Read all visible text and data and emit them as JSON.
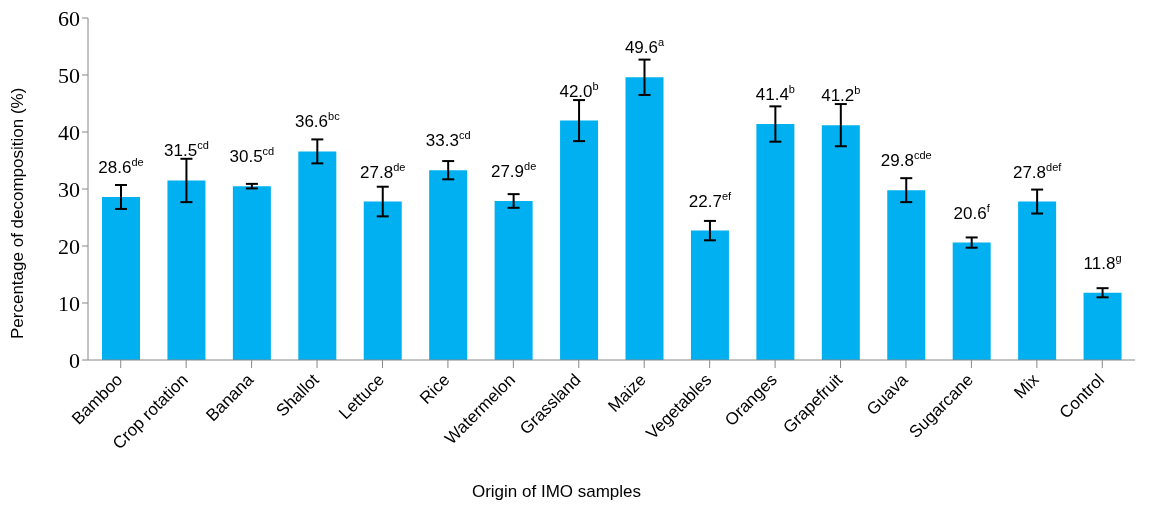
{
  "chart_data": {
    "type": "bar",
    "xlabel": "Origin of IMO samples",
    "ylabel": "Percentage of decomposition (%)",
    "categories": [
      "Bamboo",
      "Crop rotation",
      "Banana",
      "Shallot",
      "Lettuce",
      "Rice",
      "Watermelon",
      "Grassland",
      "Maize",
      "Vegetables",
      "Oranges",
      "Grapefruit",
      "Guava",
      "Sugarcane",
      "Mix",
      "Control"
    ],
    "series": [
      {
        "color": "#00b0f0",
        "values": [
          28.6,
          31.5,
          30.5,
          36.6,
          27.8,
          33.3,
          27.9,
          42.0,
          49.6,
          22.7,
          41.4,
          41.2,
          29.8,
          20.6,
          27.8,
          11.8
        ],
        "errors": [
          2.1,
          3.8,
          0.4,
          2.1,
          2.6,
          1.6,
          1.2,
          3.6,
          3.1,
          1.7,
          3.1,
          3.7,
          2.1,
          0.9,
          2.1,
          0.8
        ],
        "value_labels": [
          "28.6$^{de}$",
          "31.5$^{cd}$",
          "30.5$^{cd}$",
          "36.6$^{bc}$",
          "27.8$^{de}$",
          "33.3$^{cd}$",
          "27.9$^{de}$",
          "42.0$^{b}$",
          "49.6$^{a}$",
          "22.7$^{ef}$",
          "41.4$^{b}$",
          "41.2$^{b}$",
          "29.8$^{cde}$",
          "20.6$^{f}$",
          "27.8$^{def}$",
          "11.8$^{g}$"
        ]
      }
    ],
    "ylim": [
      0,
      60
    ],
    "yticks": [
      0,
      10,
      20,
      30,
      40,
      50,
      60
    ],
    "grid": false,
    "legend": false
  }
}
